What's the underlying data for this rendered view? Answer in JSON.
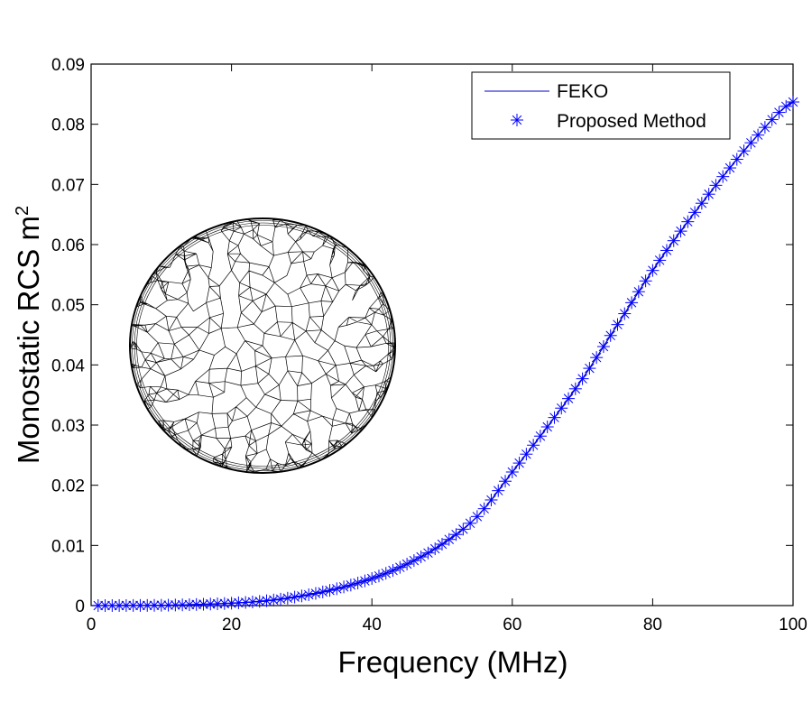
{
  "chart_data": {
    "type": "line",
    "title": "",
    "xlabel": "Frequency (MHz)",
    "ylabel": "Monostatic RCS m",
    "ylabel_superscript": "2",
    "xlim": [
      0,
      100
    ],
    "ylim": [
      0,
      0.09
    ],
    "xticks": [
      "0",
      "20",
      "40",
      "60",
      "80",
      "100"
    ],
    "xtick_values": [
      0,
      20,
      40,
      60,
      80,
      100
    ],
    "yticks": [
      "0",
      "0.01",
      "0.02",
      "0.03",
      "0.04",
      "0.05",
      "0.06",
      "0.07",
      "0.08",
      "0.09"
    ],
    "ytick_values": [
      0,
      0.01,
      0.02,
      0.03,
      0.04,
      0.05,
      0.06,
      0.07,
      0.08,
      0.09
    ],
    "grid": false,
    "legend_position": "top-right",
    "x": [
      0,
      5,
      10,
      15,
      20,
      25,
      30,
      35,
      40,
      45,
      50,
      55,
      60,
      65,
      70,
      75,
      80,
      85,
      90,
      95,
      100
    ],
    "series": [
      {
        "name": "FEKO",
        "style": "line",
        "color": "#0000c8",
        "values": [
          0,
          1e-05,
          5e-05,
          0.00018,
          0.0004,
          0.0008,
          0.0016,
          0.0028,
          0.0045,
          0.0069,
          0.0102,
          0.0148,
          0.0222,
          0.0297,
          0.0377,
          0.0467,
          0.0557,
          0.0638,
          0.0713,
          0.0782,
          0.0837
        ]
      },
      {
        "name": "Proposed Method",
        "style": "asterisk-marker",
        "color": "#0000ff",
        "marker_step_mhz": 1,
        "values": [
          0,
          1e-05,
          5e-05,
          0.00018,
          0.0004,
          0.0008,
          0.0016,
          0.0028,
          0.0045,
          0.0069,
          0.0102,
          0.0148,
          0.0222,
          0.0297,
          0.0377,
          0.0467,
          0.0557,
          0.0638,
          0.0713,
          0.0782,
          0.0837
        ]
      }
    ],
    "inset": "wireframe-sphere-mesh"
  }
}
